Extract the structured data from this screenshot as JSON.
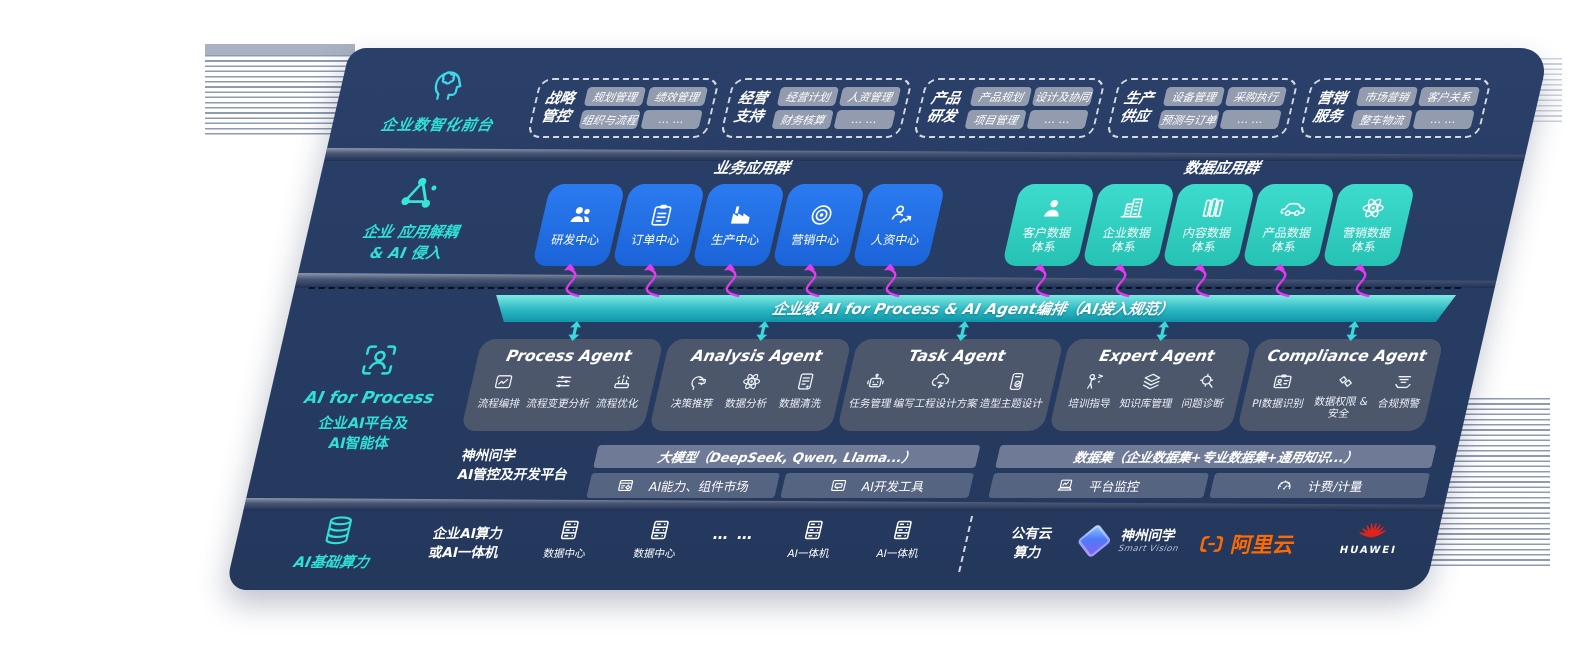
{
  "front": {
    "icon": "brain-circuit",
    "label": "企业数智化前台",
    "groups": [
      {
        "name": "战略管控",
        "tags": [
          "规划管理",
          "绩效管理",
          "组织与流程",
          "… …"
        ]
      },
      {
        "name": "经营支持",
        "tags": [
          "经营计划",
          "人资管理",
          "财务核算",
          "… …"
        ]
      },
      {
        "name": "产品研发",
        "tags": [
          "产品规划",
          "设计及协同",
          "项目管理",
          "… …"
        ]
      },
      {
        "name": "生产供应",
        "tags": [
          "设备管理",
          "采购执行",
          "预测与订单",
          "… …"
        ]
      },
      {
        "name": "营销服务",
        "tags": [
          "市场营销",
          "客户关系",
          "整车物流",
          "… …"
        ]
      }
    ]
  },
  "apps": {
    "icon": "molecule",
    "label1": "企业 应用解耦",
    "label2": "& AI 侵入",
    "business_title": "业务应用群",
    "business_cards": [
      {
        "label": "研发中心",
        "icon": "team"
      },
      {
        "label": "订单中心",
        "icon": "order-clipboard"
      },
      {
        "label": "生产中心",
        "icon": "factory"
      },
      {
        "label": "营销中心",
        "icon": "target"
      },
      {
        "label": "人资中心",
        "icon": "hr-person"
      }
    ],
    "data_title": "数据应用群",
    "data_cards": [
      {
        "label": "客户数据体系",
        "icon": "customer-person"
      },
      {
        "label": "企业数据体系",
        "icon": "enterprise-building"
      },
      {
        "label": "内容数据体系",
        "icon": "content-books"
      },
      {
        "label": "产品数据体系",
        "icon": "product-car"
      },
      {
        "label": "营销数据体系",
        "icon": "marketing-atom"
      }
    ]
  },
  "ai": {
    "icon": "scan-person",
    "label_title": "AI for Process",
    "label1": "企业AI平台及",
    "label2": "AI智能体",
    "bar": "企业级 AI for Process & AI Agent编排（AI接入规范）",
    "agents": [
      {
        "title": "Process Agent",
        "items": [
          {
            "label": "流程编排",
            "icon": "workflow-box"
          },
          {
            "label": "流程变更分析",
            "icon": "sliders"
          },
          {
            "label": "流程优化",
            "icon": "conveyor"
          }
        ]
      },
      {
        "title": "Analysis Agent",
        "items": [
          {
            "label": "决策推荐",
            "icon": "decision-head"
          },
          {
            "label": "数据分析",
            "icon": "atom"
          },
          {
            "label": "数据清洗",
            "icon": "doc-clean"
          }
        ]
      },
      {
        "title": "Task Agent",
        "items": [
          {
            "label": "任务管理",
            "icon": "robot"
          },
          {
            "label": "编写工程设计方案",
            "icon": "cloud-draft"
          },
          {
            "label": "造型主题设计",
            "icon": "design-check"
          }
        ]
      },
      {
        "title": "Expert Agent",
        "items": [
          {
            "label": "培训指导",
            "icon": "trainer"
          },
          {
            "label": "知识库管理",
            "icon": "knowledge-layers"
          },
          {
            "label": "问题诊断",
            "icon": "diagnose-search"
          }
        ]
      },
      {
        "title": "Compliance Agent",
        "items": [
          {
            "label": "PI数据识别",
            "icon": "id-card"
          },
          {
            "label": "数据权限 & 安全",
            "icon": "permission-diamonds"
          },
          {
            "label": "合规预警",
            "icon": "compliance-tray"
          }
        ]
      }
    ],
    "platform": {
      "label1": "神州问学",
      "label2": "AI管控及开发平台",
      "models": "大模型（DeepSeek, Qwen, Llama...）",
      "datasets": "数据集（企业数据集+专业数据集+通用知识...）",
      "market": "AI能力、组件市场",
      "devtools": "AI开发工具",
      "monitor": "平台监控",
      "billing": "计费/计量"
    }
  },
  "infra": {
    "icon": "database",
    "label": "AI基础算力",
    "compute1": "企业AI算力",
    "compute2": "或AI一体机",
    "nodes": [
      {
        "label": "数据中心",
        "icon": "server"
      },
      {
        "label": "数据中心",
        "icon": "server"
      },
      {
        "label": "AI一体机",
        "icon": "server"
      },
      {
        "label": "AI一体机",
        "icon": "server"
      }
    ],
    "ellipsis": "… …",
    "cloud1": "公有云",
    "cloud2": "算力",
    "sv_name": "神州问学",
    "sv_sub": "Smart Vision",
    "aliyun": "阿里云",
    "huawei": "HUAWEI"
  },
  "colors": {
    "accent_cyan": "#30e0d6",
    "card_blue": "#2070e8",
    "card_teal": "#35d3c5",
    "bar_teal": "#1fa4b4",
    "magenta": "#e23cf2",
    "arrow_cyan": "#3bd9db",
    "aliyun_orange": "#ff6a00",
    "huawei_red": "#e2231a",
    "panel_navy": "#263b61"
  }
}
